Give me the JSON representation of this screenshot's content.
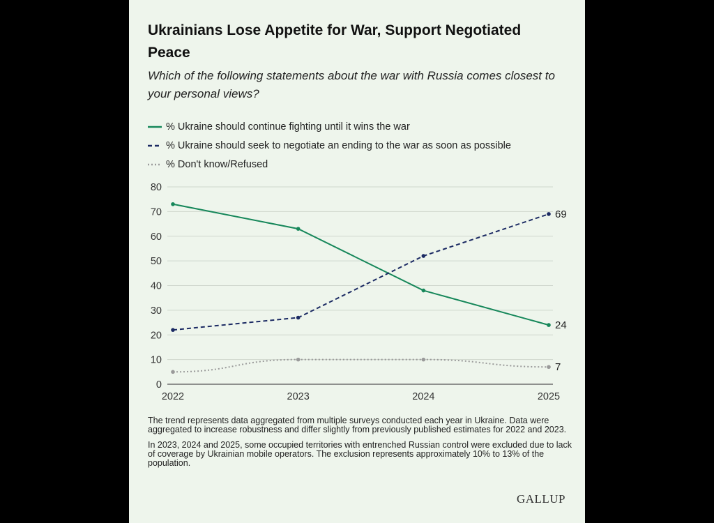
{
  "header": {
    "title": "Ukrainians Lose Appetite for War, Support Negotiated Peace",
    "subtitle": "Which of the following statements about the war with Russia comes closest to your personal views?"
  },
  "legend": [
    {
      "label": "% Ukraine should continue fighting until it wins the war",
      "style": "solid",
      "color": "#16875a"
    },
    {
      "label": "% Ukraine should seek to negotiate an ending to the war as soon as possible",
      "style": "dashed",
      "color": "#1b2a63"
    },
    {
      "label": "% Don't know/Refused",
      "style": "dotted",
      "color": "#9a9a9a"
    }
  ],
  "chart_data": {
    "type": "line",
    "x": [
      "2022",
      "2023",
      "2024",
      "2025"
    ],
    "ylim": [
      0,
      80
    ],
    "yticks": [
      0,
      10,
      20,
      30,
      40,
      50,
      60,
      70,
      80
    ],
    "grid": true,
    "series": [
      {
        "name": "% Ukraine should continue fighting until it wins the war",
        "values": [
          73,
          63,
          38,
          24
        ],
        "color": "#16875a",
        "style": "solid",
        "end_label": "24"
      },
      {
        "name": "% Ukraine should seek to negotiate an ending to the war as soon as possible",
        "values": [
          22,
          27,
          52,
          69
        ],
        "color": "#1b2a63",
        "style": "dashed",
        "end_label": "69"
      },
      {
        "name": "% Don't know/Refused",
        "values": [
          5,
          10,
          10,
          7
        ],
        "color": "#9a9a9a",
        "style": "dotted",
        "end_label": "7"
      }
    ]
  },
  "notes": [
    "The trend represents data aggregated from multiple surveys conducted each year in Ukraine. Data were aggregated to increase robustness and differ slightly from previously published estimates for 2022 and 2023.",
    "In 2023, 2024 and 2025, some occupied territories with entrenched Russian control were excluded due to lack of coverage by Ukrainian mobile operators. The exclusion represents approximately 10% to 13% of the population."
  ],
  "brand": "GALLUP"
}
